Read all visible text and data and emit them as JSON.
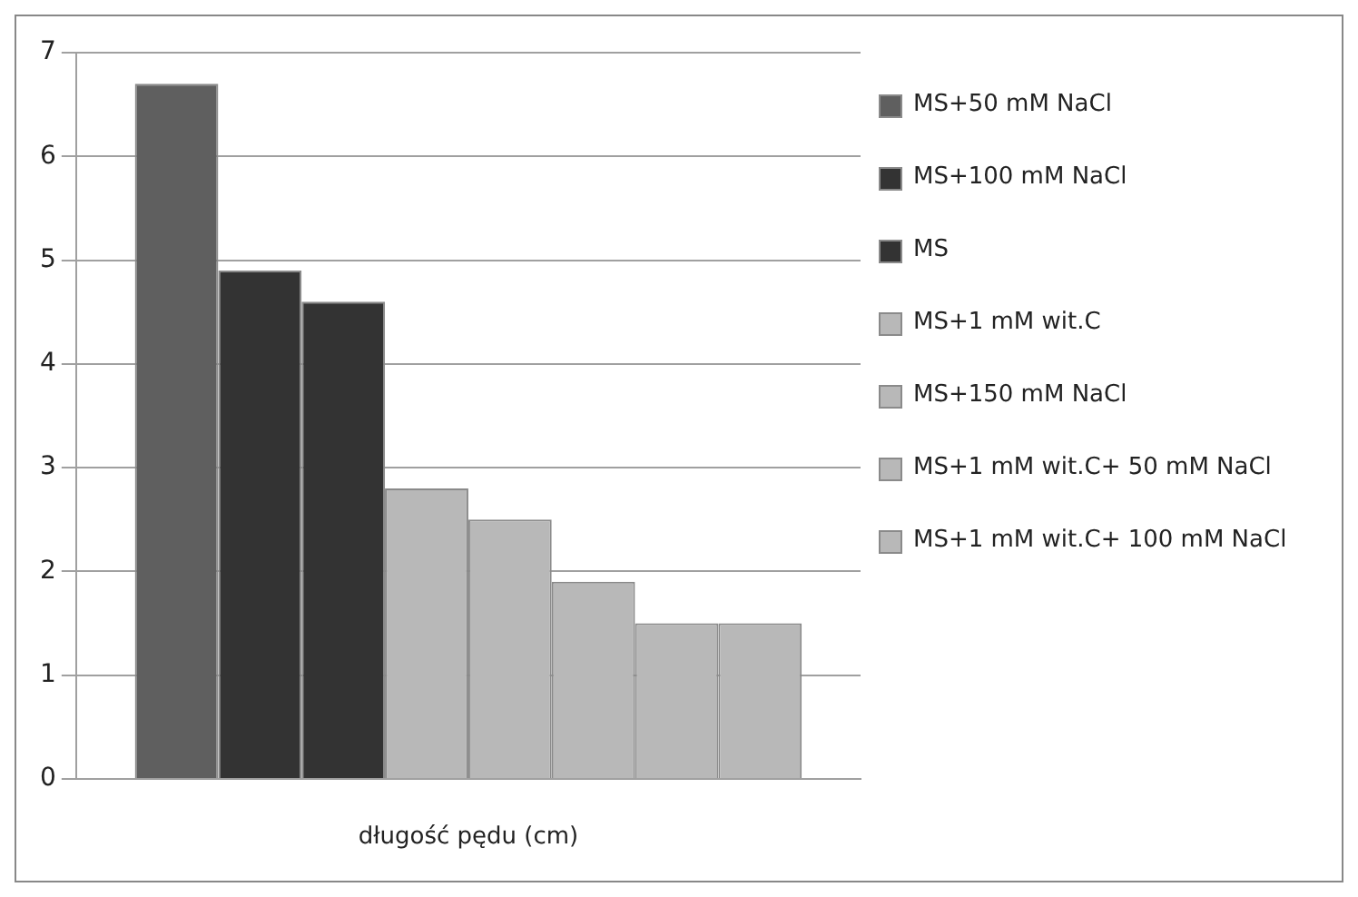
{
  "chart_data": {
    "type": "bar",
    "xlabel": "długość pędu (cm)",
    "categories": [
      null
    ],
    "series": [
      {
        "name": "MS+50 mM NaCl",
        "color": "#5f5f5f",
        "values": [
          6.7
        ]
      },
      {
        "name": "MS+100 mM NaCl",
        "color": "#333333",
        "values": [
          4.9
        ]
      },
      {
        "name": "MS",
        "color": "#333333",
        "values": [
          4.6
        ]
      },
      {
        "name": "MS+1 mM wit.C",
        "color": "#b8b8b8",
        "values": [
          2.8
        ]
      },
      {
        "name": "MS+150 mM NaCl",
        "color": "#b8b8b8",
        "values": [
          2.5
        ]
      },
      {
        "name": "MS+1 mM wit.C+ 50 mM NaCl",
        "color": "#b8b8b8",
        "values": [
          1.9
        ]
      },
      {
        "name": "MS+1 mM wit.C+ 100 mM NaCl",
        "color": "#b8b8b8",
        "values": [
          1.5
        ]
      },
      {
        "color": "#b8b8b8",
        "values": [
          1.5
        ]
      }
    ],
    "ylim": [
      0,
      7
    ],
    "yticks": [
      0,
      1,
      2,
      3,
      4,
      5,
      6,
      7
    ],
    "grid": "y",
    "legend": "right"
  }
}
